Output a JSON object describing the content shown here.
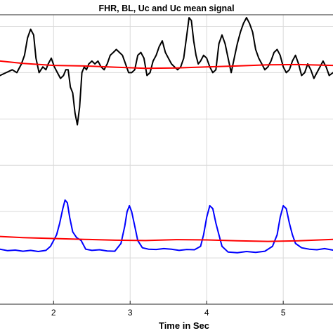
{
  "chart_data": {
    "type": "line",
    "title": "FHR, BL, Uc and Uc mean signal",
    "xlabel": "Time in Sec",
    "ylabel": "",
    "x_ticks": [
      2,
      3,
      4,
      5
    ],
    "xlim": [
      1.3,
      5.65
    ],
    "ylim": [
      0,
      100
    ],
    "y_gridlines": [
      16,
      32,
      48,
      64,
      80,
      96
    ],
    "grid": true,
    "legend": "none",
    "series": [
      {
        "color": "#000000",
        "x": [
          1.3,
          1.38,
          1.46,
          1.52,
          1.58,
          1.62,
          1.66,
          1.7,
          1.74,
          1.77,
          1.81,
          1.86,
          1.9,
          1.93,
          1.97,
          2.01,
          2.05,
          2.09,
          2.13,
          2.16,
          2.19,
          2.22,
          2.25,
          2.28,
          2.31,
          2.34,
          2.37,
          2.4,
          2.43,
          2.46,
          2.5,
          2.54,
          2.58,
          2.62,
          2.66,
          2.7,
          2.74,
          2.78,
          2.82,
          2.86,
          2.9,
          2.94,
          2.98,
          3.02,
          3.06,
          3.1,
          3.14,
          3.18,
          3.22,
          3.26,
          3.3,
          3.34,
          3.38,
          3.42,
          3.46,
          3.5,
          3.54,
          3.58,
          3.62,
          3.66,
          3.7,
          3.74,
          3.77,
          3.8,
          3.83,
          3.86,
          3.89,
          3.92,
          3.96,
          4.0,
          4.04,
          4.08,
          4.12,
          4.16,
          4.2,
          4.24,
          4.28,
          4.32,
          4.36,
          4.4,
          4.44,
          4.48,
          4.52,
          4.56,
          4.6,
          4.64,
          4.68,
          4.72,
          4.76,
          4.8,
          4.84,
          4.88,
          4.92,
          4.96,
          5.0,
          5.04,
          5.08,
          5.12,
          5.16,
          5.2,
          5.24,
          5.28,
          5.32,
          5.36,
          5.4,
          5.44,
          5.48,
          5.52,
          5.56,
          5.6,
          5.65
        ],
        "values": [
          79,
          80,
          81,
          80,
          83,
          86,
          92,
          95,
          93,
          85,
          80,
          82,
          81,
          83,
          85,
          82,
          80,
          78,
          79,
          81,
          81,
          75,
          73,
          66,
          62,
          68,
          80,
          82,
          81,
          83,
          84,
          83,
          84,
          82,
          81,
          83,
          86,
          87,
          88,
          87,
          86,
          83,
          80,
          80,
          81,
          86,
          87,
          85,
          79,
          80,
          84,
          86,
          89,
          91,
          87,
          85,
          83,
          82,
          81,
          82,
          85,
          93,
          99,
          98,
          91,
          86,
          83,
          84,
          86,
          85,
          82,
          80,
          81,
          90,
          93,
          90,
          85,
          80,
          85,
          90,
          94,
          97,
          99,
          97,
          94,
          88,
          85,
          83,
          81,
          82,
          84,
          87,
          88,
          86,
          82,
          80,
          81,
          84,
          86,
          83,
          79,
          80,
          83,
          81,
          78,
          80,
          82,
          84,
          82,
          79,
          80
        ]
      },
      {
        "color": "#ff0000",
        "x": [
          1.3,
          1.6,
          2.0,
          2.4,
          2.8,
          3.2,
          3.6,
          4.0,
          4.4,
          4.8,
          5.2,
          5.65
        ],
        "values": [
          84,
          83.2,
          82.5,
          82.3,
          81.9,
          81.5,
          81.6,
          82,
          82.3,
          82.7,
          82.8,
          82.5
        ]
      },
      {
        "color": "#0000ff",
        "x": [
          1.3,
          1.4,
          1.5,
          1.6,
          1.7,
          1.8,
          1.9,
          1.96,
          2.0,
          2.04,
          2.08,
          2.12,
          2.15,
          2.18,
          2.21,
          2.25,
          2.3,
          2.36,
          2.42,
          2.5,
          2.6,
          2.7,
          2.8,
          2.88,
          2.93,
          2.96,
          2.99,
          3.02,
          3.06,
          3.1,
          3.16,
          3.24,
          3.34,
          3.44,
          3.54,
          3.64,
          3.74,
          3.84,
          3.92,
          3.96,
          4.0,
          4.04,
          4.08,
          4.12,
          4.16,
          4.2,
          4.28,
          4.4,
          4.52,
          4.64,
          4.76,
          4.86,
          4.92,
          4.96,
          5.0,
          5.04,
          5.08,
          5.12,
          5.16,
          5.24,
          5.34,
          5.44,
          5.54,
          5.65
        ],
        "values": [
          19,
          18.5,
          18.7,
          18.3,
          18.6,
          18.2,
          18.6,
          20,
          22,
          24,
          28,
          33,
          36,
          35,
          30,
          25,
          23,
          22,
          19,
          18.6,
          18.8,
          18.4,
          18.3,
          21,
          27,
          32,
          34,
          32,
          27,
          22,
          19.5,
          19,
          18.9,
          19.2,
          19,
          18.6,
          18.9,
          18.8,
          20,
          24,
          30,
          34,
          33,
          28,
          24,
          20,
          18,
          17.8,
          18.2,
          17.9,
          18.3,
          20,
          24,
          30,
          34,
          33,
          28,
          24,
          21,
          19.5,
          19,
          18.8,
          19.2,
          18.7
        ]
      },
      {
        "color": "#ff0000",
        "x": [
          1.3,
          1.6,
          2.0,
          2.4,
          2.8,
          3.2,
          3.6,
          4.0,
          4.4,
          4.8,
          5.2,
          5.65
        ],
        "values": [
          23.4,
          23,
          22.7,
          22.4,
          22.1,
          22,
          22.3,
          22.2,
          21.9,
          21.7,
          21.9,
          22.4
        ]
      }
    ]
  }
}
